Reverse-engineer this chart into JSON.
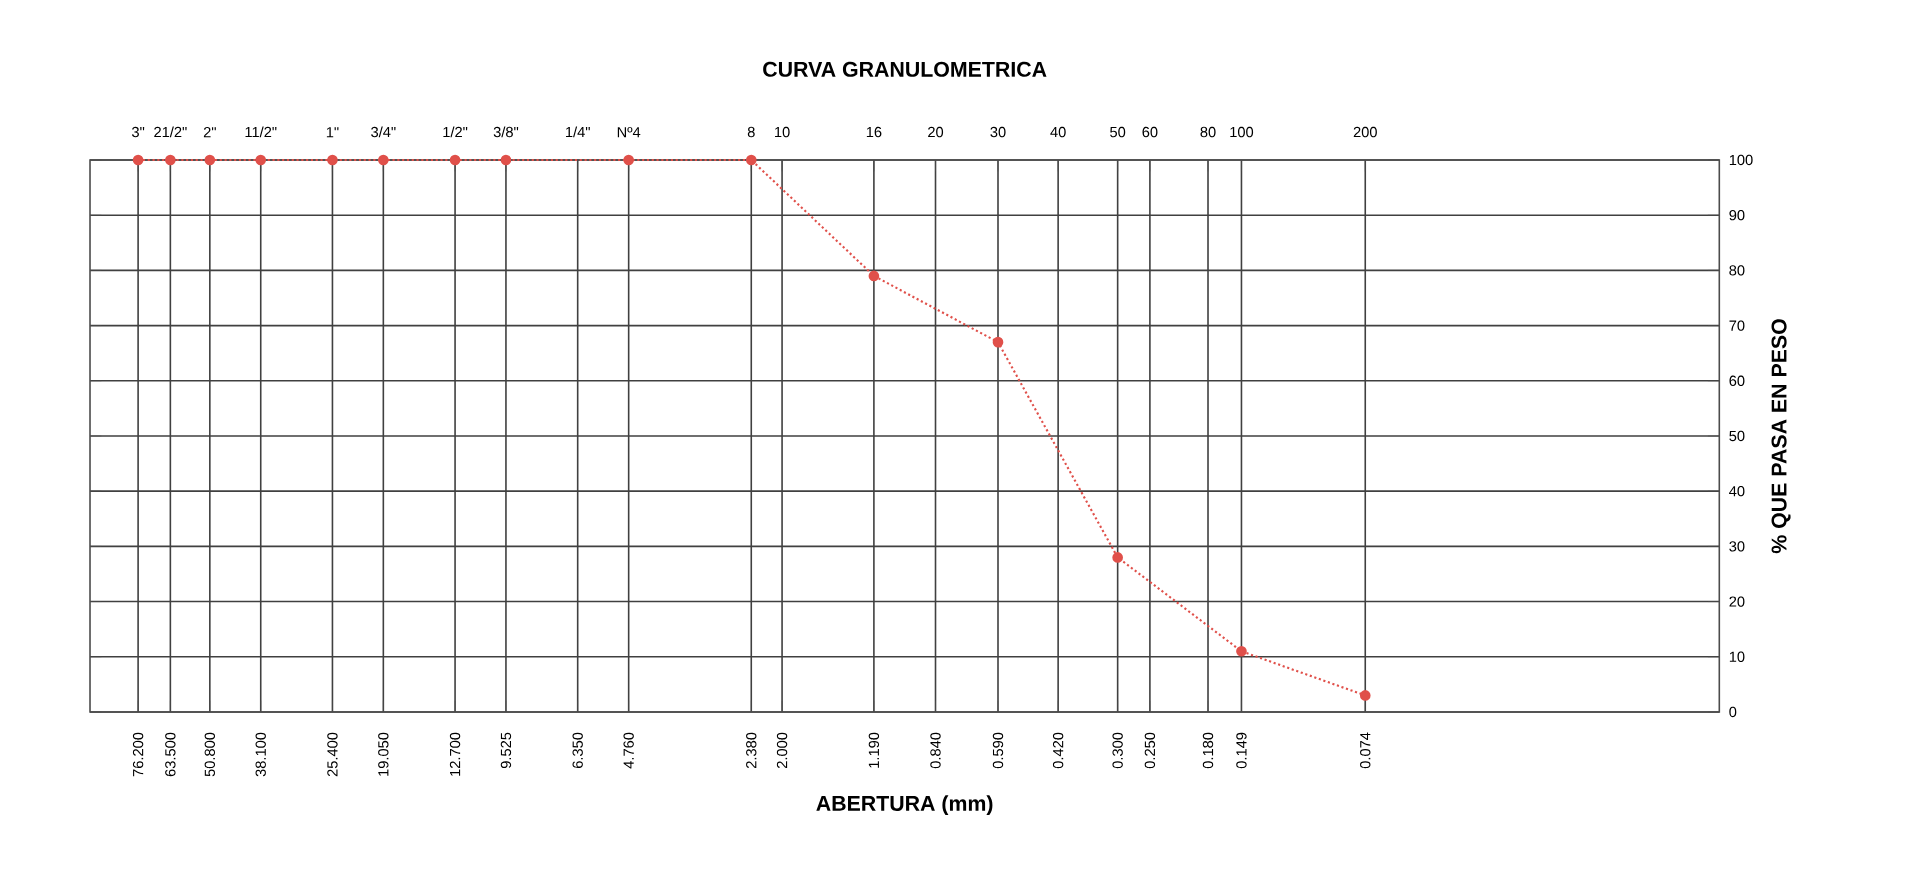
{
  "chart_data": {
    "type": "line",
    "title": "CURVA GRANULOMETRICA",
    "xlabel": "ABERTURA (mm)",
    "ylabel": "% QUE PASA EN PESO",
    "log": "x",
    "xlim": [
      100,
      0.01
    ],
    "ylim": [
      0,
      100
    ],
    "grid": true,
    "marker": "circle",
    "line_style": "dotted",
    "yticks": [
      0,
      10,
      20,
      30,
      40,
      50,
      60,
      70,
      80,
      90,
      100
    ],
    "xticks": [
      {
        "value": 76.2,
        "label": "76.200"
      },
      {
        "value": 63.5,
        "label": "63.500"
      },
      {
        "value": 50.8,
        "label": "50.800"
      },
      {
        "value": 38.1,
        "label": "38.100"
      },
      {
        "value": 25.4,
        "label": "25.400"
      },
      {
        "value": 19.05,
        "label": "19.050"
      },
      {
        "value": 12.7,
        "label": "12.700"
      },
      {
        "value": 9.525,
        "label": "9.525"
      },
      {
        "value": 6.35,
        "label": "6.350"
      },
      {
        "value": 4.76,
        "label": "4.760"
      },
      {
        "value": 2.38,
        "label": "2.380"
      },
      {
        "value": 2.0,
        "label": "2.000"
      },
      {
        "value": 1.19,
        "label": "1.190"
      },
      {
        "value": 0.84,
        "label": "0.840"
      },
      {
        "value": 0.59,
        "label": "0.590"
      },
      {
        "value": 0.42,
        "label": "0.420"
      },
      {
        "value": 0.3,
        "label": "0.300"
      },
      {
        "value": 0.25,
        "label": "0.250"
      },
      {
        "value": 0.18,
        "label": "0.180"
      },
      {
        "value": 0.149,
        "label": "0.149"
      },
      {
        "value": 0.074,
        "label": "0.074"
      }
    ],
    "annotations": [
      "3\"",
      "21/2\"",
      "2\"",
      "11/2\"",
      "1\"",
      "3/4\"",
      "1/2\"",
      "3/8\"",
      "1/4\"",
      "Nº4",
      "8",
      "10",
      "16",
      "20",
      "30",
      "40",
      "50",
      "60",
      "80",
      "100",
      "200"
    ],
    "series": [
      {
        "color": "#e0504a",
        "x": [
          76.2,
          63.5,
          50.8,
          38.1,
          25.4,
          19.05,
          12.7,
          9.525,
          4.76,
          2.38,
          1.19,
          0.59,
          0.3,
          0.149,
          0.074
        ],
        "values": [
          100,
          100,
          100,
          100,
          100,
          100,
          100,
          100,
          100,
          100,
          79,
          67,
          28,
          11,
          3
        ]
      }
    ]
  }
}
